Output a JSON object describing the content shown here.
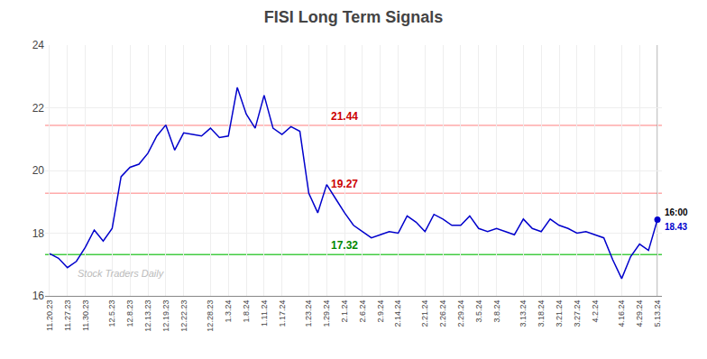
{
  "chart_data": {
    "type": "line",
    "title": "FISI Long Term Signals",
    "color": "#0000cc",
    "categories": [
      "11.20.23",
      null,
      "11.27.23",
      null,
      "11.30.23",
      null,
      null,
      "12.5.23",
      null,
      "12.8.23",
      null,
      "12.13.23",
      null,
      "12.19.23",
      null,
      "12.22.23",
      null,
      null,
      "12.28.23",
      null,
      "1.3.24",
      null,
      "1.8.24",
      null,
      "1.11.24",
      null,
      "1.17.24",
      null,
      null,
      "1.23.24",
      null,
      "1.29.24",
      null,
      "2.1.24",
      null,
      "2.6.24",
      null,
      "2.9.24",
      null,
      "2.14.24",
      null,
      null,
      "2.21.24",
      null,
      "2.26.24",
      null,
      "2.29.24",
      null,
      "3.5.24",
      null,
      "3.8.24",
      null,
      null,
      "3.13.24",
      null,
      "3.18.24",
      null,
      "3.21.24",
      null,
      "3.27.24",
      null,
      "4.2.24",
      null,
      null,
      "4.16.24",
      null,
      "4.29.24",
      null,
      "5.13.24"
    ],
    "values": [
      17.35,
      17.2,
      16.9,
      17.1,
      17.55,
      18.1,
      17.75,
      18.15,
      19.8,
      20.1,
      20.2,
      20.55,
      21.1,
      21.45,
      20.65,
      21.2,
      21.15,
      21.1,
      21.35,
      21.05,
      21.1,
      22.65,
      21.8,
      21.35,
      22.4,
      21.35,
      21.15,
      21.4,
      21.25,
      19.27,
      18.65,
      19.55,
      19.1,
      18.65,
      18.25,
      18.05,
      17.85,
      17.95,
      18.05,
      18.0,
      18.55,
      18.35,
      18.05,
      18.6,
      18.45,
      18.25,
      18.25,
      18.55,
      18.15,
      18.05,
      18.15,
      18.05,
      17.95,
      18.45,
      18.15,
      18.05,
      18.45,
      18.25,
      18.15,
      18.0,
      18.05,
      17.95,
      17.85,
      17.15,
      16.55,
      17.25,
      17.65,
      17.45,
      18.43
    ],
    "ylim": [
      16,
      24
    ],
    "yticks": [
      16,
      18,
      20,
      22,
      24
    ],
    "grid": true,
    "hlines": [
      {
        "value": 21.44,
        "color": "#ffaaaa",
        "label": "21.44",
        "label_color": "#cc0000"
      },
      {
        "value": 19.27,
        "color": "#ffaaaa",
        "label": "19.27",
        "label_color": "#cc0000"
      },
      {
        "value": 17.32,
        "color": "#44cc44",
        "label": "17.32",
        "label_color": "#008800"
      }
    ],
    "last_point": {
      "time_label": "16:00",
      "time_color": "#000000",
      "value_label": "18.43"
    },
    "watermark": "Stock Traders Daily"
  }
}
